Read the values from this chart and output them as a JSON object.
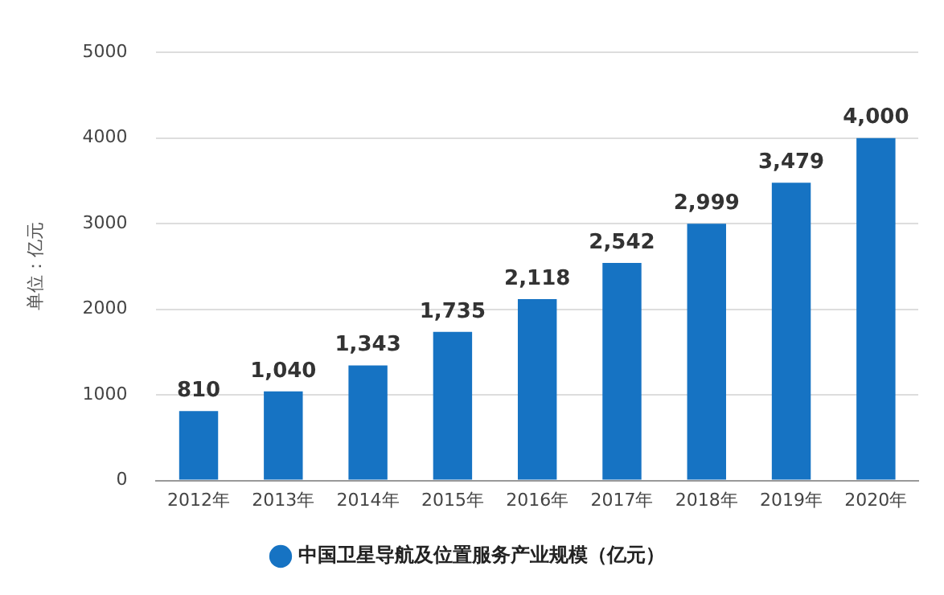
{
  "chart_data": {
    "type": "bar",
    "ylabel": "单位：亿元",
    "categories": [
      "2012年",
      "2013年",
      "2014年",
      "2015年",
      "2016年",
      "2017年",
      "2018年",
      "2019年",
      "2020年"
    ],
    "series": [
      {
        "name": "中国卫星导航及位置服务产业规模（亿元）",
        "color": "#1673c3",
        "values": [
          810,
          1040,
          1343,
          1735,
          2118,
          2542,
          2999,
          3479,
          4000
        ],
        "value_labels": [
          "810",
          "1,040",
          "1,343",
          "1,735",
          "2,118",
          "2,542",
          "2,999",
          "3,479",
          "4,000"
        ]
      }
    ],
    "ylim": [
      0,
      5000
    ],
    "yticks": [
      0,
      1000,
      2000,
      3000,
      4000,
      5000
    ],
    "grid": "y",
    "legend": "bottom",
    "marker": "circle"
  }
}
